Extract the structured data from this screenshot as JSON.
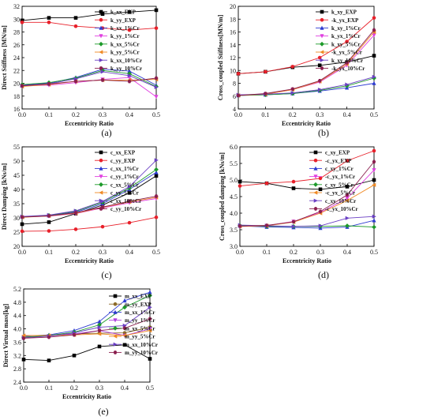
{
  "chart_data": [
    {
      "type": "line",
      "panel_label": "(a)",
      "xlabel": "Eccentricity Ratio",
      "ylabel": "Direct Stiffness [MN/m]",
      "x": [
        0,
        0.1,
        0.2,
        0.3,
        0.4,
        0.5
      ],
      "xlim": [
        0,
        0.5
      ],
      "ylim": [
        16,
        32
      ],
      "yticks": [
        16,
        18,
        20,
        22,
        24,
        26,
        28,
        30,
        32
      ],
      "xticks": [
        0.0,
        0.1,
        0.2,
        0.3,
        0.4,
        0.5
      ],
      "grid": false,
      "legend_position": "top-right",
      "series": [
        {
          "name": "k_xx_EXP",
          "color": "#000000",
          "marker": "square",
          "values": [
            29.8,
            30.2,
            30.2,
            30.8,
            31.1,
            31.4
          ]
        },
        {
          "name": "k_yy_EXP",
          "color": "#e8202a",
          "marker": "circle",
          "values": [
            29.5,
            29.5,
            28.9,
            28.6,
            28.3,
            28.6
          ]
        },
        {
          "name": "k_xx_1%Cr",
          "color": "#2e3bd1",
          "marker": "triangle",
          "values": [
            19.7,
            20.0,
            20.9,
            22.2,
            21.9,
            19.7
          ]
        },
        {
          "name": "k_yy_1%Cr",
          "color": "#e040e0",
          "marker": "triangle-down",
          "values": [
            19.6,
            19.7,
            20.1,
            20.6,
            20.9,
            17.9
          ]
        },
        {
          "name": "k_xx_5%Cr",
          "color": "#1d9a2a",
          "marker": "diamond",
          "values": [
            19.8,
            20.1,
            20.8,
            22.0,
            21.5,
            19.5
          ]
        },
        {
          "name": "k_yy_5%Cr",
          "color": "#f08a24",
          "marker": "triangle-left",
          "values": [
            19.5,
            19.8,
            20.3,
            20.5,
            20.5,
            20.6
          ]
        },
        {
          "name": "k_xx_10%Cr",
          "color": "#6a3fc4",
          "marker": "triangle-right",
          "values": [
            19.6,
            19.9,
            20.7,
            21.8,
            21.2,
            19.4
          ]
        },
        {
          "name": "k_yy_10%Cr",
          "color": "#8a1e4e",
          "marker": "hexagon",
          "values": [
            19.6,
            19.9,
            20.3,
            20.5,
            20.3,
            20.8
          ]
        }
      ]
    },
    {
      "type": "line",
      "panel_label": "(b)",
      "xlabel": "Eccentricity Ratio",
      "ylabel": "Cross_coupled Stiffness[MN/m]",
      "x": [
        0,
        0.1,
        0.2,
        0.3,
        0.4,
        0.5
      ],
      "xlim": [
        0,
        0.5
      ],
      "ylim": [
        4,
        20
      ],
      "yticks": [
        4,
        6,
        8,
        10,
        12,
        14,
        16,
        18,
        20
      ],
      "xticks": [
        0.0,
        0.1,
        0.2,
        0.3,
        0.4,
        0.5
      ],
      "grid": false,
      "legend_position": "top-right",
      "series": [
        {
          "name": "k_xy_EXP",
          "color": "#000000",
          "marker": "square",
          "values": [
            9.5,
            9.8,
            10.5,
            10.8,
            11.3,
            12.3
          ]
        },
        {
          "name": "-k_yx_EXP",
          "color": "#e8202a",
          "marker": "circle",
          "values": [
            9.5,
            9.8,
            10.6,
            12.0,
            14.5,
            18.2
          ]
        },
        {
          "name": "k_xy_1%Cr",
          "color": "#2e3bd1",
          "marker": "triangle",
          "values": [
            6.1,
            6.2,
            6.4,
            6.8,
            7.3,
            8.0
          ]
        },
        {
          "name": "k_yx_1%Cr",
          "color": "#e040e0",
          "marker": "triangle-down",
          "values": [
            6.1,
            6.3,
            7.0,
            8.2,
            10.8,
            15.5
          ]
        },
        {
          "name": "k_xy_5%Cr",
          "color": "#1d9a2a",
          "marker": "diamond",
          "values": [
            6.1,
            6.2,
            6.4,
            6.9,
            7.6,
            8.8
          ]
        },
        {
          "name": "-k_yx_5%Cr",
          "color": "#f08a24",
          "marker": "triangle-left",
          "values": [
            6.1,
            6.3,
            7.0,
            8.3,
            11.0,
            16.0
          ]
        },
        {
          "name": "k_xy_10%Cr",
          "color": "#6a3fc4",
          "marker": "triangle-right",
          "values": [
            6.2,
            6.3,
            6.5,
            7.0,
            7.8,
            9.0
          ]
        },
        {
          "name": "-k_yx_10%Cr",
          "color": "#8a1e4e",
          "marker": "hexagon",
          "values": [
            6.1,
            6.4,
            7.1,
            8.4,
            11.2,
            16.3
          ]
        }
      ]
    },
    {
      "type": "line",
      "panel_label": "(c)",
      "xlabel": "Eccentricity Ratio",
      "ylabel": "Direct Damping [kNs/m]",
      "x": [
        0,
        0.1,
        0.2,
        0.3,
        0.4,
        0.5
      ],
      "xlim": [
        0,
        0.5
      ],
      "ylim": [
        20,
        55
      ],
      "yticks": [
        20,
        25,
        30,
        35,
        40,
        45,
        50,
        55
      ],
      "xticks": [
        0.0,
        0.1,
        0.2,
        0.3,
        0.4,
        0.5
      ],
      "grid": false,
      "legend_position": "top-right",
      "series": [
        {
          "name": "c_xx_EXP",
          "color": "#000000",
          "marker": "square",
          "values": [
            27.8,
            28.5,
            31.5,
            34.5,
            38.8,
            44.8
          ]
        },
        {
          "name": "c_yy_EXP",
          "color": "#e8202a",
          "marker": "circle",
          "values": [
            25.3,
            25.4,
            26.0,
            26.9,
            28.3,
            30.2
          ]
        },
        {
          "name": "c_xx_1%Cr",
          "color": "#2e3bd1",
          "marker": "triangle",
          "values": [
            30.4,
            30.8,
            32.0,
            35.0,
            40.0,
            46.0
          ]
        },
        {
          "name": "c_yy_1%Cr",
          "color": "#e040e0",
          "marker": "triangle-down",
          "values": [
            30.3,
            30.6,
            31.5,
            33.5,
            35.3,
            36.8
          ]
        },
        {
          "name": "c_xx_5%Cr",
          "color": "#1d9a2a",
          "marker": "diamond",
          "values": [
            30.4,
            30.9,
            32.3,
            35.5,
            40.5,
            47.0
          ]
        },
        {
          "name": "c_yy_5%Cr",
          "color": "#f08a24",
          "marker": "triangle-left",
          "values": [
            30.2,
            30.7,
            31.6,
            33.7,
            35.6,
            37.2
          ]
        },
        {
          "name": "c_xx_10%Cr",
          "color": "#6a3fc4",
          "marker": "triangle-right",
          "values": [
            30.5,
            31.0,
            32.5,
            35.8,
            41.0,
            50.3
          ]
        },
        {
          "name": "c_yy_10%Cr",
          "color": "#8a1e4e",
          "marker": "hexagon",
          "values": [
            30.3,
            30.7,
            31.8,
            33.8,
            35.9,
            37.6
          ]
        }
      ]
    },
    {
      "type": "line",
      "panel_label": "(d)",
      "xlabel": "Eccentricity Ratio",
      "ylabel": "Cross_coupled damping [kNs/m]",
      "x": [
        0,
        0.1,
        0.2,
        0.3,
        0.4,
        0.5
      ],
      "xlim": [
        0,
        0.5
      ],
      "ylim": [
        3.0,
        6.0
      ],
      "yticks": [
        3.0,
        3.5,
        4.0,
        4.5,
        5.0,
        5.5,
        6.0
      ],
      "xticks": [
        0.0,
        0.1,
        0.2,
        0.3,
        0.4,
        0.5
      ],
      "grid": false,
      "legend_position": "top-right",
      "series": [
        {
          "name": "c_xy_EXP",
          "color": "#000000",
          "marker": "square",
          "values": [
            4.95,
            4.9,
            4.75,
            4.72,
            4.8,
            5.0
          ]
        },
        {
          "name": "-c_yx_EXP",
          "color": "#e8202a",
          "marker": "circle",
          "values": [
            4.82,
            4.9,
            4.95,
            5.05,
            5.58,
            5.88
          ]
        },
        {
          "name": "c_xy_1%Cr",
          "color": "#2e3bd1",
          "marker": "triangle",
          "values": [
            3.62,
            3.58,
            3.57,
            3.55,
            3.58,
            3.78
          ]
        },
        {
          "name": "-c_yx_1%Cr",
          "color": "#e040e0",
          "marker": "triangle-down",
          "values": [
            3.6,
            3.62,
            3.75,
            4.02,
            4.45,
            5.3
          ]
        },
        {
          "name": "c_xy_5%Cr",
          "color": "#1d9a2a",
          "marker": "diamond",
          "values": [
            3.63,
            3.6,
            3.6,
            3.6,
            3.62,
            3.58
          ]
        },
        {
          "name": "-c_yx_5%Cr",
          "color": "#f08a24",
          "marker": "triangle-left",
          "values": [
            3.6,
            3.62,
            3.73,
            4.0,
            4.38,
            4.85
          ]
        },
        {
          "name": "c_xy_10%Cr",
          "color": "#6a3fc4",
          "marker": "triangle-right",
          "values": [
            3.64,
            3.62,
            3.6,
            3.62,
            3.85,
            3.9
          ]
        },
        {
          "name": "-c_yx_10%Cr",
          "color": "#8a1e4e",
          "marker": "hexagon",
          "values": [
            3.61,
            3.63,
            3.74,
            4.05,
            4.55,
            5.55
          ]
        }
      ]
    },
    {
      "type": "line",
      "panel_label": "(e)",
      "xlabel": "Eccentricity Ratio",
      "ylabel": "Direct Virtual mass[kg]",
      "x": [
        0,
        0.1,
        0.2,
        0.3,
        0.4,
        0.5
      ],
      "xlim": [
        0,
        0.5
      ],
      "ylim": [
        2.4,
        5.2
      ],
      "yticks": [
        2.4,
        2.8,
        3.2,
        3.6,
        4.0,
        4.4,
        4.8,
        5.2
      ],
      "xticks": [
        0.0,
        0.1,
        0.2,
        0.3,
        0.4,
        0.5
      ],
      "grid": false,
      "legend_position": "right",
      "series": [
        {
          "name": "m_xx_EXP",
          "color": "#000000",
          "marker": "square",
          "values": [
            3.08,
            3.05,
            3.2,
            3.47,
            3.52,
            3.1
          ]
        },
        {
          "name": "m_yy_EXP",
          "color": "#8c6a2a",
          "marker": "circle",
          "values": [
            3.73,
            3.8,
            3.85,
            3.87,
            3.88,
            4.05
          ]
        },
        {
          "name": "m_xx_1%Cr",
          "color": "#2e3bd1",
          "marker": "triangle",
          "values": [
            3.78,
            3.82,
            3.95,
            4.22,
            4.85,
            5.1
          ]
        },
        {
          "name": "m_yy_1%Cr",
          "color": "#b040e0",
          "marker": "triangle-down",
          "values": [
            3.76,
            3.78,
            3.85,
            3.95,
            3.8,
            4.0
          ]
        },
        {
          "name": "m_xx_5%Cr",
          "color": "#1d9a2a",
          "marker": "diamond",
          "values": [
            3.75,
            3.8,
            3.9,
            4.12,
            4.65,
            5.0
          ]
        },
        {
          "name": "m_yy_5%Cr",
          "color": "#f08a24",
          "marker": "triangle-left",
          "values": [
            3.8,
            3.8,
            3.82,
            3.85,
            3.8,
            3.95
          ]
        },
        {
          "name": "m_xx_10%Cr",
          "color": "#6a3fc4",
          "marker": "triangle-right",
          "values": [
            3.73,
            3.78,
            3.88,
            4.05,
            4.1,
            4.65
          ]
        },
        {
          "name": "m_yy_10%Cr",
          "color": "#8a1e4e",
          "marker": "hexagon",
          "values": [
            3.72,
            3.75,
            3.82,
            3.95,
            4.02,
            4.3
          ]
        }
      ]
    }
  ]
}
